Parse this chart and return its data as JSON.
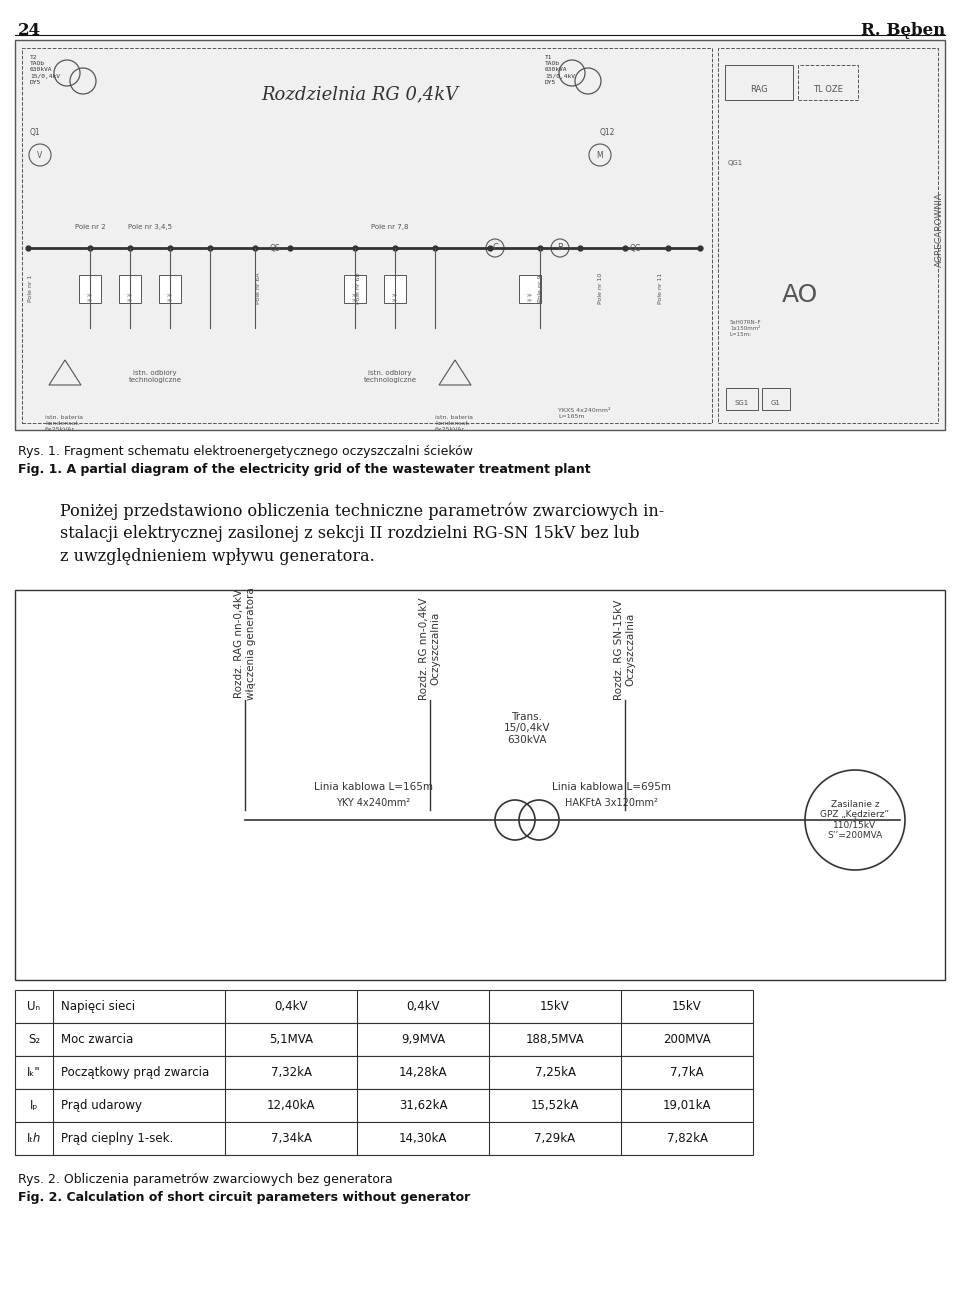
{
  "page_number": "24",
  "author": "R. Bęben",
  "fig1_caption_pl": "Rys. 1. Fragment schematu elektroenergetycznego oczyszczalni ścieków",
  "fig1_caption_en": "Fig. 1. A partial diagram of the electricity grid of the wastewater treatment plant",
  "body_line1": "Poniżej przedstawiono obliczenia techniczne parametrów zwarciowych in-",
  "body_line2": "stalacji elektrycznej zasilonej z sekcji II rozdzielni RG-SN 15kV bez lub",
  "body_line3": "z uwzględnieniem wpływu generatora.",
  "col1_label": "Rozdz. RAG nn-0,4kV\nwłączenia generatora",
  "col2_label": "Rozdz. RG nn-0,4kV\nOczyszczalnia",
  "col3_label": "Rozdz. RG SN-15kV\nOczyszczalnia",
  "trans_label": "Trans.\n15/0,4kV\n630kVA",
  "cable1_label": "Linia kablowa L=165m",
  "cable1_type": "YKY 4x240mm²",
  "cable2_label": "Linia kablowa L=695m",
  "cable2_type": "HAKFtA 3x120mm²",
  "supply_label": "Zasilanie z\nGPZ „Kędzierz”\n110/15kV\nS’’=200MVA",
  "table_data": [
    [
      "Uₙ",
      "Napięci sieci",
      "0,4kV",
      "0,4kV",
      "15kV",
      "15kV"
    ],
    [
      "S₂",
      "Moc zwarcia",
      "5,1MVA",
      "9,9MVA",
      "188,5MVA",
      "200MVA"
    ],
    [
      "Iₖ\"",
      "Początkowy prąd zwarcia",
      "7,32kA",
      "14,28kA",
      "7,25kA",
      "7,7kA"
    ],
    [
      "Iₚ",
      "Prąd udarowy",
      "12,40kA",
      "31,62kA",
      "15,52kA",
      "19,01kA"
    ],
    [
      "Iₜℎ",
      "Prąd cieplny 1-sek.",
      "7,34kA",
      "14,30kA",
      "7,29kA",
      "7,82kA"
    ]
  ],
  "fig2_caption_pl": "Rys. 2. Obliczenia parametrów zwarciowych bez generatora",
  "fig2_caption_en": "Fig. 2. Calculation of short circuit parameters without generator",
  "schematic_title": "Rozdzielnia RG 0,4kV",
  "gray": "#555555",
  "darkgray": "#333333",
  "black": "#111111",
  "white": "#ffffff",
  "lightgray": "#f0f0f0"
}
